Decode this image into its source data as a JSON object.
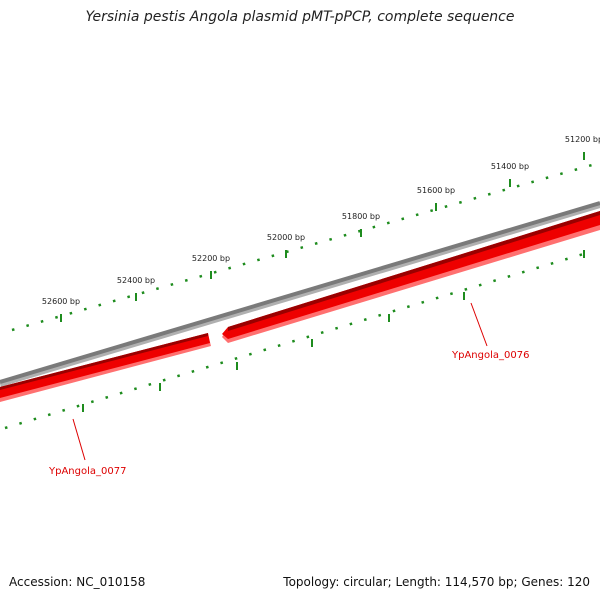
{
  "title": "Yersinia pestis Angola plasmid pMT-pPCP, complete sequence",
  "accession": "Accession: NC_010158",
  "summary": "Topology: circular; Length: 114,570 bp; Genes: 120",
  "ruler": {
    "labels": [
      "51200 bp",
      "51400 bp",
      "51600 bp",
      "51800 bp",
      "52000 bp",
      "52200 bp",
      "52400 bp",
      "52600 bp"
    ]
  },
  "genes": [
    {
      "label": "YpAngola_0076"
    },
    {
      "label": "YpAngola_0077"
    }
  ],
  "colors": {
    "backbone": "#808080",
    "gene_fill": "#ee0000",
    "gene_dark": "#990000",
    "gene_light": "#ff6b6b",
    "tick": "#1e8c1e",
    "gene_label": "#dd0000"
  }
}
